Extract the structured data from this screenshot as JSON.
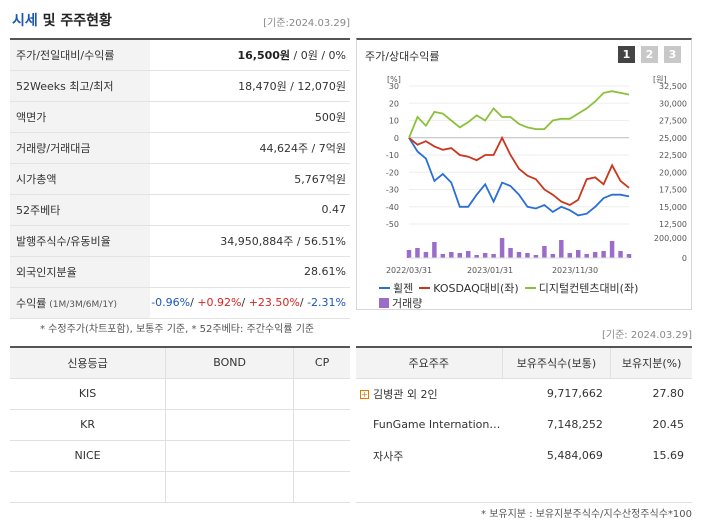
{
  "header": {
    "title_accent": "시세",
    "title_rest": " 및 주주현황",
    "date": "[기준:2024.03.29]"
  },
  "info_rows": [
    {
      "label": "주가/전일대비/수익률",
      "v1": "16,500원",
      "v2": " / 0원 / 0%"
    },
    {
      "label": "52Weeks 최고/최저",
      "value": "18,470원 / 12,070원"
    },
    {
      "label": "액면가",
      "value": "500원"
    },
    {
      "label": "거래량/거래대금",
      "value": "44,624주 / 7억원"
    },
    {
      "label": "시가총액",
      "value": "5,767억원"
    },
    {
      "label": "52주베타",
      "value": "0.47"
    },
    {
      "label": "발행주식수/유동비율",
      "value": "34,950,884주 / 56.51%"
    },
    {
      "label": "외국인지분율",
      "value": "28.61%"
    }
  ],
  "returns_row": {
    "label": "수익률",
    "sublabel": " (1M/3M/6M/1Y)",
    "r1": "-0.96%",
    "r2": "+0.92%",
    "r3": "+23.50%",
    "r4": "-2.31%",
    "sep": "/ "
  },
  "notes": {
    "note1": "* 수정주가(차트포함), 보통주 기준, * 52주베타: 주간수익률 기준",
    "date2": "[기준: 2024.03.29]",
    "note2": "* 보유지분 : 보유지분주식수/지수산정주식수*100"
  },
  "chart_panel": {
    "title": "주가/상대수익률",
    "pages": [
      "1",
      "2",
      "3"
    ],
    "active_page": 0
  },
  "chart_data": {
    "type": "line",
    "x_ticks": [
      "2022/03/31",
      "2023/01/31",
      "2023/11/30"
    ],
    "y_left_unit": "[%]",
    "y_left_ticks": [
      30,
      20,
      10,
      0,
      -10,
      -20,
      -30,
      -40,
      -50
    ],
    "y_right_unit": "[원]",
    "y_right_ticks": [
      "32,500",
      "30,000",
      "27,500",
      "25,000",
      "22,500",
      "20,000",
      "17,500",
      "15,000",
      "12,500"
    ],
    "volume_ticks": [
      "200,000",
      "0"
    ],
    "ylim_left": [
      -50,
      30
    ],
    "series": [
      {
        "name": "휠젠",
        "color": "#2a6fd6",
        "values": [
          0,
          -8,
          -12,
          -25,
          -21,
          -26,
          -40,
          -40,
          -33,
          -27,
          -37,
          -26,
          -28,
          -33,
          -40,
          -41,
          -39,
          -43,
          -40,
          -42,
          -45,
          -44,
          -40,
          -35,
          -33,
          -33,
          -34
        ]
      },
      {
        "name": "KOSDAQ대비(좌)",
        "color": "#c9361d",
        "values": [
          0,
          -4,
          -2,
          -5,
          -7,
          -6,
          -10,
          -11,
          -13,
          -10,
          -10,
          0,
          -10,
          -18,
          -22,
          -24,
          -30,
          -33,
          -37,
          -39,
          -36,
          -24,
          -23,
          -27,
          -16,
          -25,
          -29
        ]
      },
      {
        "name": "디지털컨텐츠대비(좌)",
        "color": "#8bc13a",
        "values": [
          0,
          12,
          7,
          15,
          14,
          10,
          6,
          9,
          13,
          10,
          17,
          12,
          12,
          8,
          6,
          5,
          5,
          10,
          11,
          11,
          14,
          17,
          21,
          26,
          27,
          26,
          25
        ]
      }
    ],
    "volume": {
      "name": "거래량",
      "color": "#9b6cc9",
      "values": [
        8,
        10,
        6,
        16,
        4,
        6,
        5,
        7,
        3,
        5,
        4,
        20,
        10,
        6,
        5,
        3,
        12,
        4,
        18,
        5,
        8,
        4,
        6,
        7,
        17,
        7,
        4
      ]
    }
  },
  "credit": {
    "headers": [
      "신용등급",
      "BOND",
      "CP"
    ],
    "rows": [
      [
        "KIS",
        "",
        ""
      ],
      [
        "KR",
        "",
        ""
      ],
      [
        "NICE",
        "",
        ""
      ],
      [
        "",
        "",
        ""
      ]
    ]
  },
  "holders": {
    "headers": [
      "주요주주",
      "보유주식수(보통)",
      "보유지분(%)"
    ],
    "rows": [
      {
        "name": "김병관 외 2인",
        "shares": "9,717,662",
        "pct": "27.80",
        "expandable": true
      },
      {
        "name": "FunGame International…",
        "shares": "7,148,252",
        "pct": "20.45",
        "expandable": false
      },
      {
        "name": "자사주",
        "shares": "5,484,069",
        "pct": "15.69",
        "expandable": false
      },
      {
        "name": "",
        "shares": "",
        "pct": "",
        "expandable": false
      }
    ]
  }
}
